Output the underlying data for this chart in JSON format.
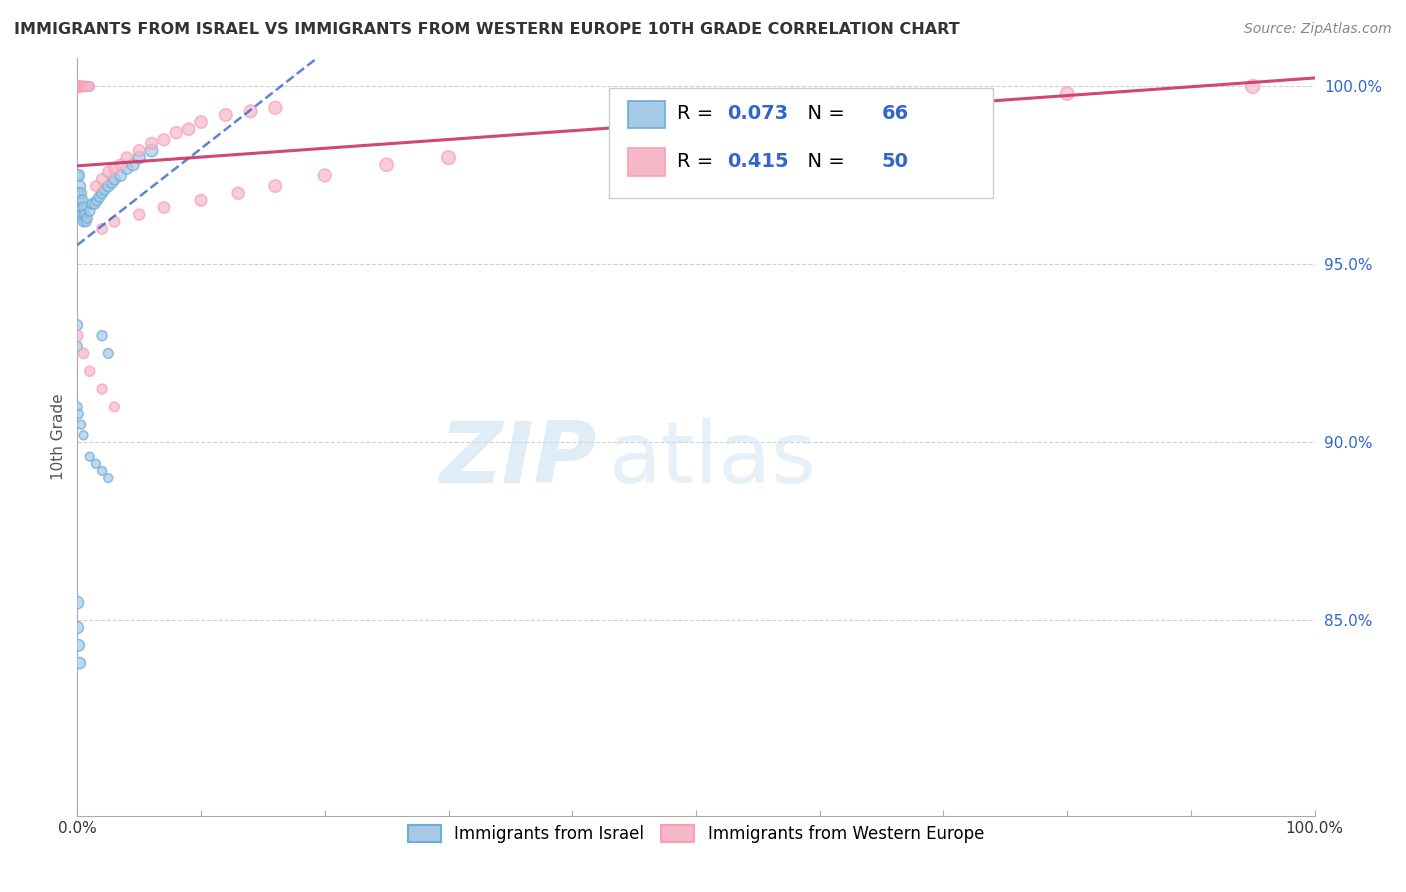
{
  "title": "IMMIGRANTS FROM ISRAEL VS IMMIGRANTS FROM WESTERN EUROPE 10TH GRADE CORRELATION CHART",
  "source": "Source: ZipAtlas.com",
  "xlabel_blue": "Immigrants from Israel",
  "xlabel_pink": "Immigrants from Western Europe",
  "ylabel": "10th Grade",
  "r_blue": 0.073,
  "n_blue": 66,
  "r_pink": 0.415,
  "n_pink": 50,
  "blue_fill": "#a8c8e8",
  "blue_edge": "#6baed6",
  "pink_fill": "#f4b8c8",
  "pink_edge": "#fa9fb5",
  "blue_line_color": "#3366cc",
  "pink_line_color": "#cc3366",
  "legend_number_color": "#3366cc",
  "right_tick_color": "#3366cc",
  "xlim": [
    0.0,
    1.0
  ],
  "ylim": [
    0.795,
    1.008
  ],
  "right_yticks": [
    1.0,
    0.95,
    0.9,
    0.85
  ],
  "right_yticklabels": [
    "100.0%",
    "95.0%",
    "90.0%",
    "85.0%"
  ],
  "watermark_text": "ZIP",
  "watermark_text2": "atlas",
  "background_color": "#ffffff",
  "grid_color": "#cccccc"
}
